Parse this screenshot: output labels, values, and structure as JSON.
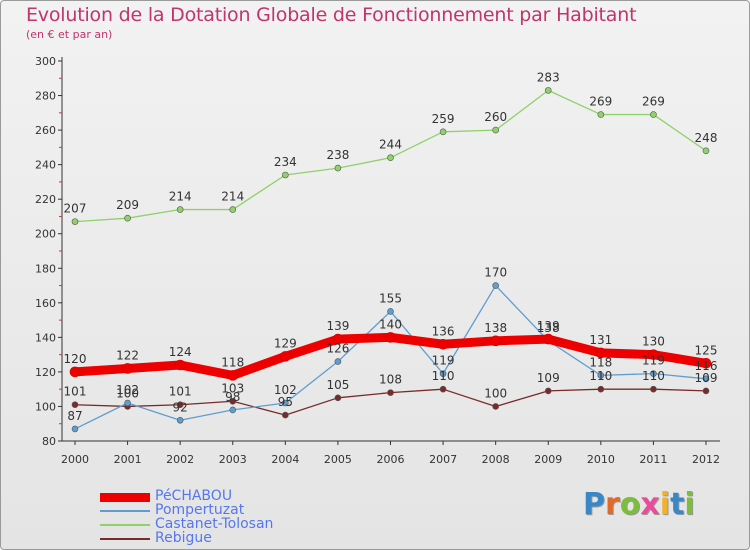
{
  "header": {
    "title": "Evolution de la Dotation Globale de Fonctionnement par Habitant",
    "subtitle": "(en € et par an)"
  },
  "logo": {
    "text": "Proxiti",
    "letter_colors": [
      "#3a87c8",
      "#e06a2a",
      "#7cbd3b",
      "#e84d9a",
      "#f2b12c",
      "#3a87c8",
      "#7cbd3b"
    ]
  },
  "chart_data": {
    "type": "line",
    "title": "Evolution de la Dotation Globale de Fonctionnement par Habitant",
    "subtitle": "(en € et par an)",
    "categories": [
      "2000",
      "2001",
      "2002",
      "2003",
      "2004",
      "2005",
      "2006",
      "2007",
      "2008",
      "2009",
      "2010",
      "2011",
      "2012"
    ],
    "ylim": [
      80,
      300
    ],
    "yticks": [
      80,
      100,
      120,
      140,
      160,
      180,
      200,
      220,
      240,
      260,
      280,
      300
    ],
    "grid": false,
    "legend_position": "bottom-left",
    "series": [
      {
        "name": "PéCHABOU",
        "color": "#ee0000",
        "values": [
          120,
          122,
          124,
          118,
          129,
          139,
          140,
          136,
          138,
          139,
          131,
          130,
          125
        ]
      },
      {
        "name": "Pompertuzat",
        "color": "#5f9dd1",
        "values": [
          87,
          102,
          92,
          98,
          102,
          126,
          155,
          119,
          170,
          138,
          118,
          119,
          116
        ]
      },
      {
        "name": "Castanet-Tolosan",
        "color": "#8fd16a",
        "values": [
          207,
          209,
          214,
          214,
          234,
          238,
          244,
          259,
          260,
          283,
          269,
          269,
          248
        ]
      },
      {
        "name": "Rebigue",
        "color": "#7a2a2a",
        "values": [
          101,
          100,
          101,
          103,
          95,
          105,
          108,
          110,
          100,
          109,
          110,
          110,
          109
        ]
      }
    ]
  }
}
